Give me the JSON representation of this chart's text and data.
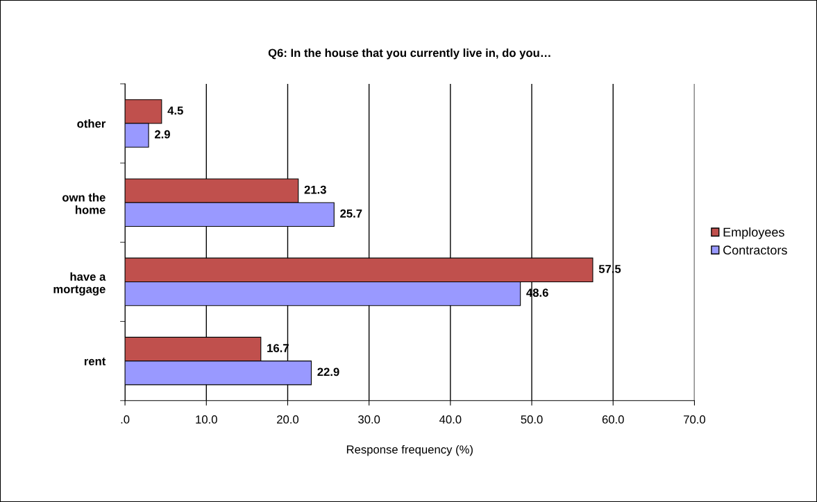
{
  "chart_data": {
    "type": "bar",
    "orientation": "horizontal",
    "title": "Q6: In the house that you currently live in, do you…",
    "xlabel": "Response frequency (%)",
    "categories": [
      "other",
      "own the\nhome",
      "have a\nmortgage",
      "rent"
    ],
    "series": [
      {
        "name": "Employees",
        "color": "#c0504d",
        "values": [
          4.5,
          21.3,
          57.5,
          16.7
        ]
      },
      {
        "name": "Contractors",
        "color": "#9999ff",
        "values": [
          2.9,
          25.7,
          48.6,
          22.9
        ]
      }
    ],
    "xlim": [
      0,
      70
    ],
    "xticks": [
      {
        "value": 0,
        "label": ".0"
      },
      {
        "value": 10,
        "label": "10.0"
      },
      {
        "value": 20,
        "label": "20.0"
      },
      {
        "value": 30,
        "label": "30.0"
      },
      {
        "value": 40,
        "label": "40.0"
      },
      {
        "value": 50,
        "label": "50.0"
      },
      {
        "value": 60,
        "label": "60.0"
      },
      {
        "value": 70,
        "label": "70.0"
      }
    ],
    "grid": "x",
    "legend": "right",
    "data_labels": true
  }
}
